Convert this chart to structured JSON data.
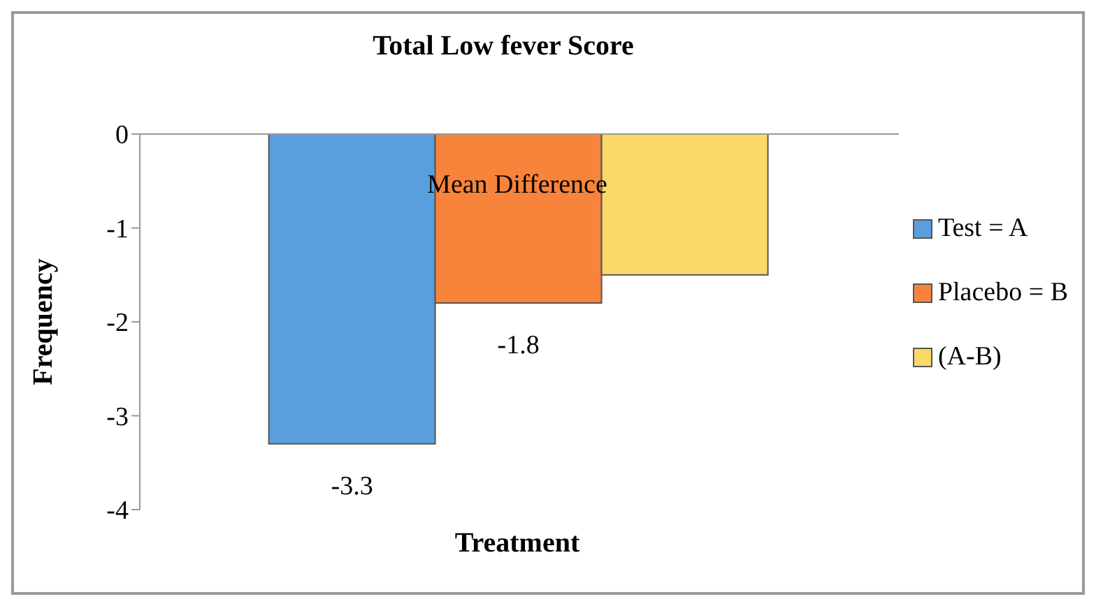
{
  "chart_data": {
    "type": "bar",
    "title": "Total Low fever Score",
    "xlabel": "Treatment",
    "ylabel": "Frequency",
    "categories": [
      null
    ],
    "series": [
      {
        "name": "Test = A",
        "color": "#5a9fdd",
        "values": [
          -3.3
        ],
        "value_labels": [
          "-3.3"
        ]
      },
      {
        "name": "Placebo = B",
        "color": "#f7843a",
        "values": [
          -1.8
        ],
        "value_labels": [
          "-1.8"
        ]
      },
      {
        "name": "(A-B)",
        "color": "#fbd867",
        "values": [
          -1.5
        ],
        "value_labels": [
          null
        ]
      }
    ],
    "annotations": [
      "Mean Difference"
    ],
    "ylim": [
      -4,
      0
    ],
    "yticks": [
      -4,
      -3,
      -2,
      -1,
      0
    ],
    "legend": "right"
  }
}
